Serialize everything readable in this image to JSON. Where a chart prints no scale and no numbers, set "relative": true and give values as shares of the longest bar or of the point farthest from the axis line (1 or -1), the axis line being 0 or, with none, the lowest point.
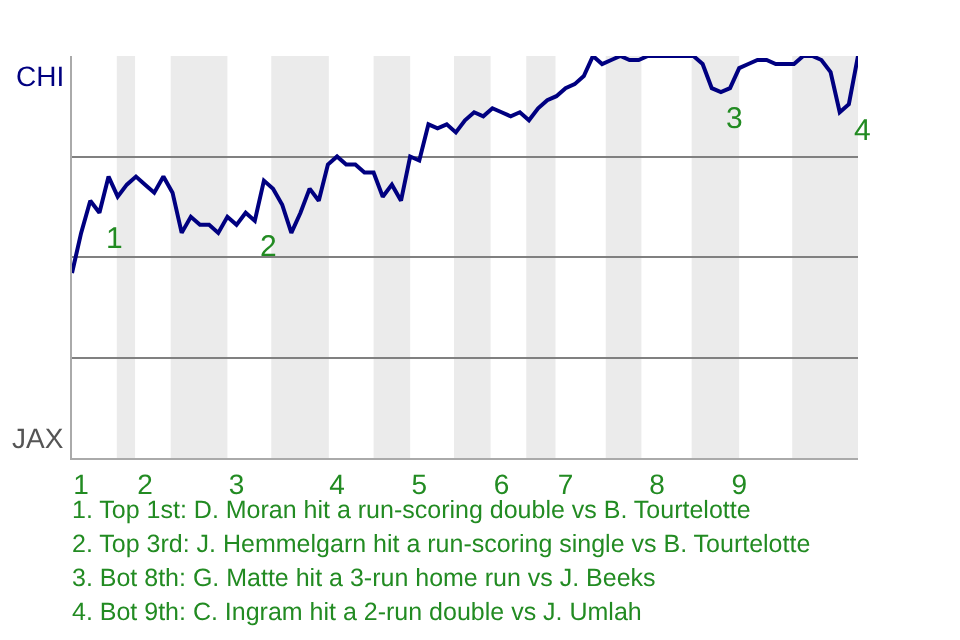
{
  "chart_data": {
    "type": "line",
    "relative": true,
    "categories": [
      null,
      "1",
      null,
      null,
      null,
      null,
      null,
      null,
      "2",
      null,
      null,
      null,
      null,
      null,
      null,
      null,
      null,
      null,
      "3",
      null,
      null,
      null,
      null,
      null,
      null,
      null,
      null,
      null,
      null,
      "4",
      null,
      null,
      null,
      null,
      null,
      null,
      null,
      null,
      "5",
      null,
      null,
      null,
      null,
      null,
      null,
      null,
      null,
      "6",
      null,
      null,
      null,
      null,
      null,
      null,
      "7",
      null,
      null,
      null,
      null,
      null,
      null,
      null,
      null,
      null,
      "8",
      null,
      null,
      null,
      null,
      null,
      null,
      null,
      null,
      "9",
      null,
      null,
      null,
      null,
      null,
      null,
      null,
      null,
      null,
      null,
      null,
      null,
      null
    ],
    "series": [
      {
        "color": "#000080",
        "values": [
          0.46,
          0.56,
          0.64,
          0.61,
          0.7,
          0.65,
          0.68,
          0.7,
          0.68,
          0.66,
          0.7,
          0.66,
          0.56,
          0.6,
          0.58,
          0.58,
          0.56,
          0.6,
          0.58,
          0.61,
          0.59,
          0.69,
          0.67,
          0.63,
          0.56,
          0.61,
          0.67,
          0.64,
          0.73,
          0.75,
          0.73,
          0.73,
          0.71,
          0.71,
          0.65,
          0.68,
          0.64,
          0.75,
          0.74,
          0.83,
          0.82,
          0.83,
          0.81,
          0.84,
          0.86,
          0.85,
          0.87,
          0.86,
          0.85,
          0.86,
          0.84,
          0.87,
          0.89,
          0.9,
          0.92,
          0.93,
          0.95,
          1.0,
          0.98,
          0.99,
          1.0,
          0.99,
          0.99,
          1.0,
          1.0,
          1.0,
          1.0,
          1.0,
          1.0,
          0.98,
          0.92,
          0.91,
          0.92,
          0.97,
          0.98,
          0.99,
          0.99,
          0.98,
          0.98,
          0.98,
          1.0,
          1.0,
          0.99,
          0.96,
          0.86,
          0.88,
          1.0
        ]
      }
    ],
    "grid": "y",
    "annotations": [
      "CHI",
      "JAX",
      "1",
      "2",
      "3",
      "4",
      "1. Top 1st: D. Moran hit a run-scoring double vs B. Tourtelotte",
      "2. Top 3rd: J. Hemmelgarn hit a run-scoring single vs B. Tourtelotte",
      "3. Bot 8th: G. Matte hit a 3-run home run vs J. Beeks",
      "4. Bot 9th: C. Ingram hit a 2-run double vs J. Umlah"
    ]
  }
}
